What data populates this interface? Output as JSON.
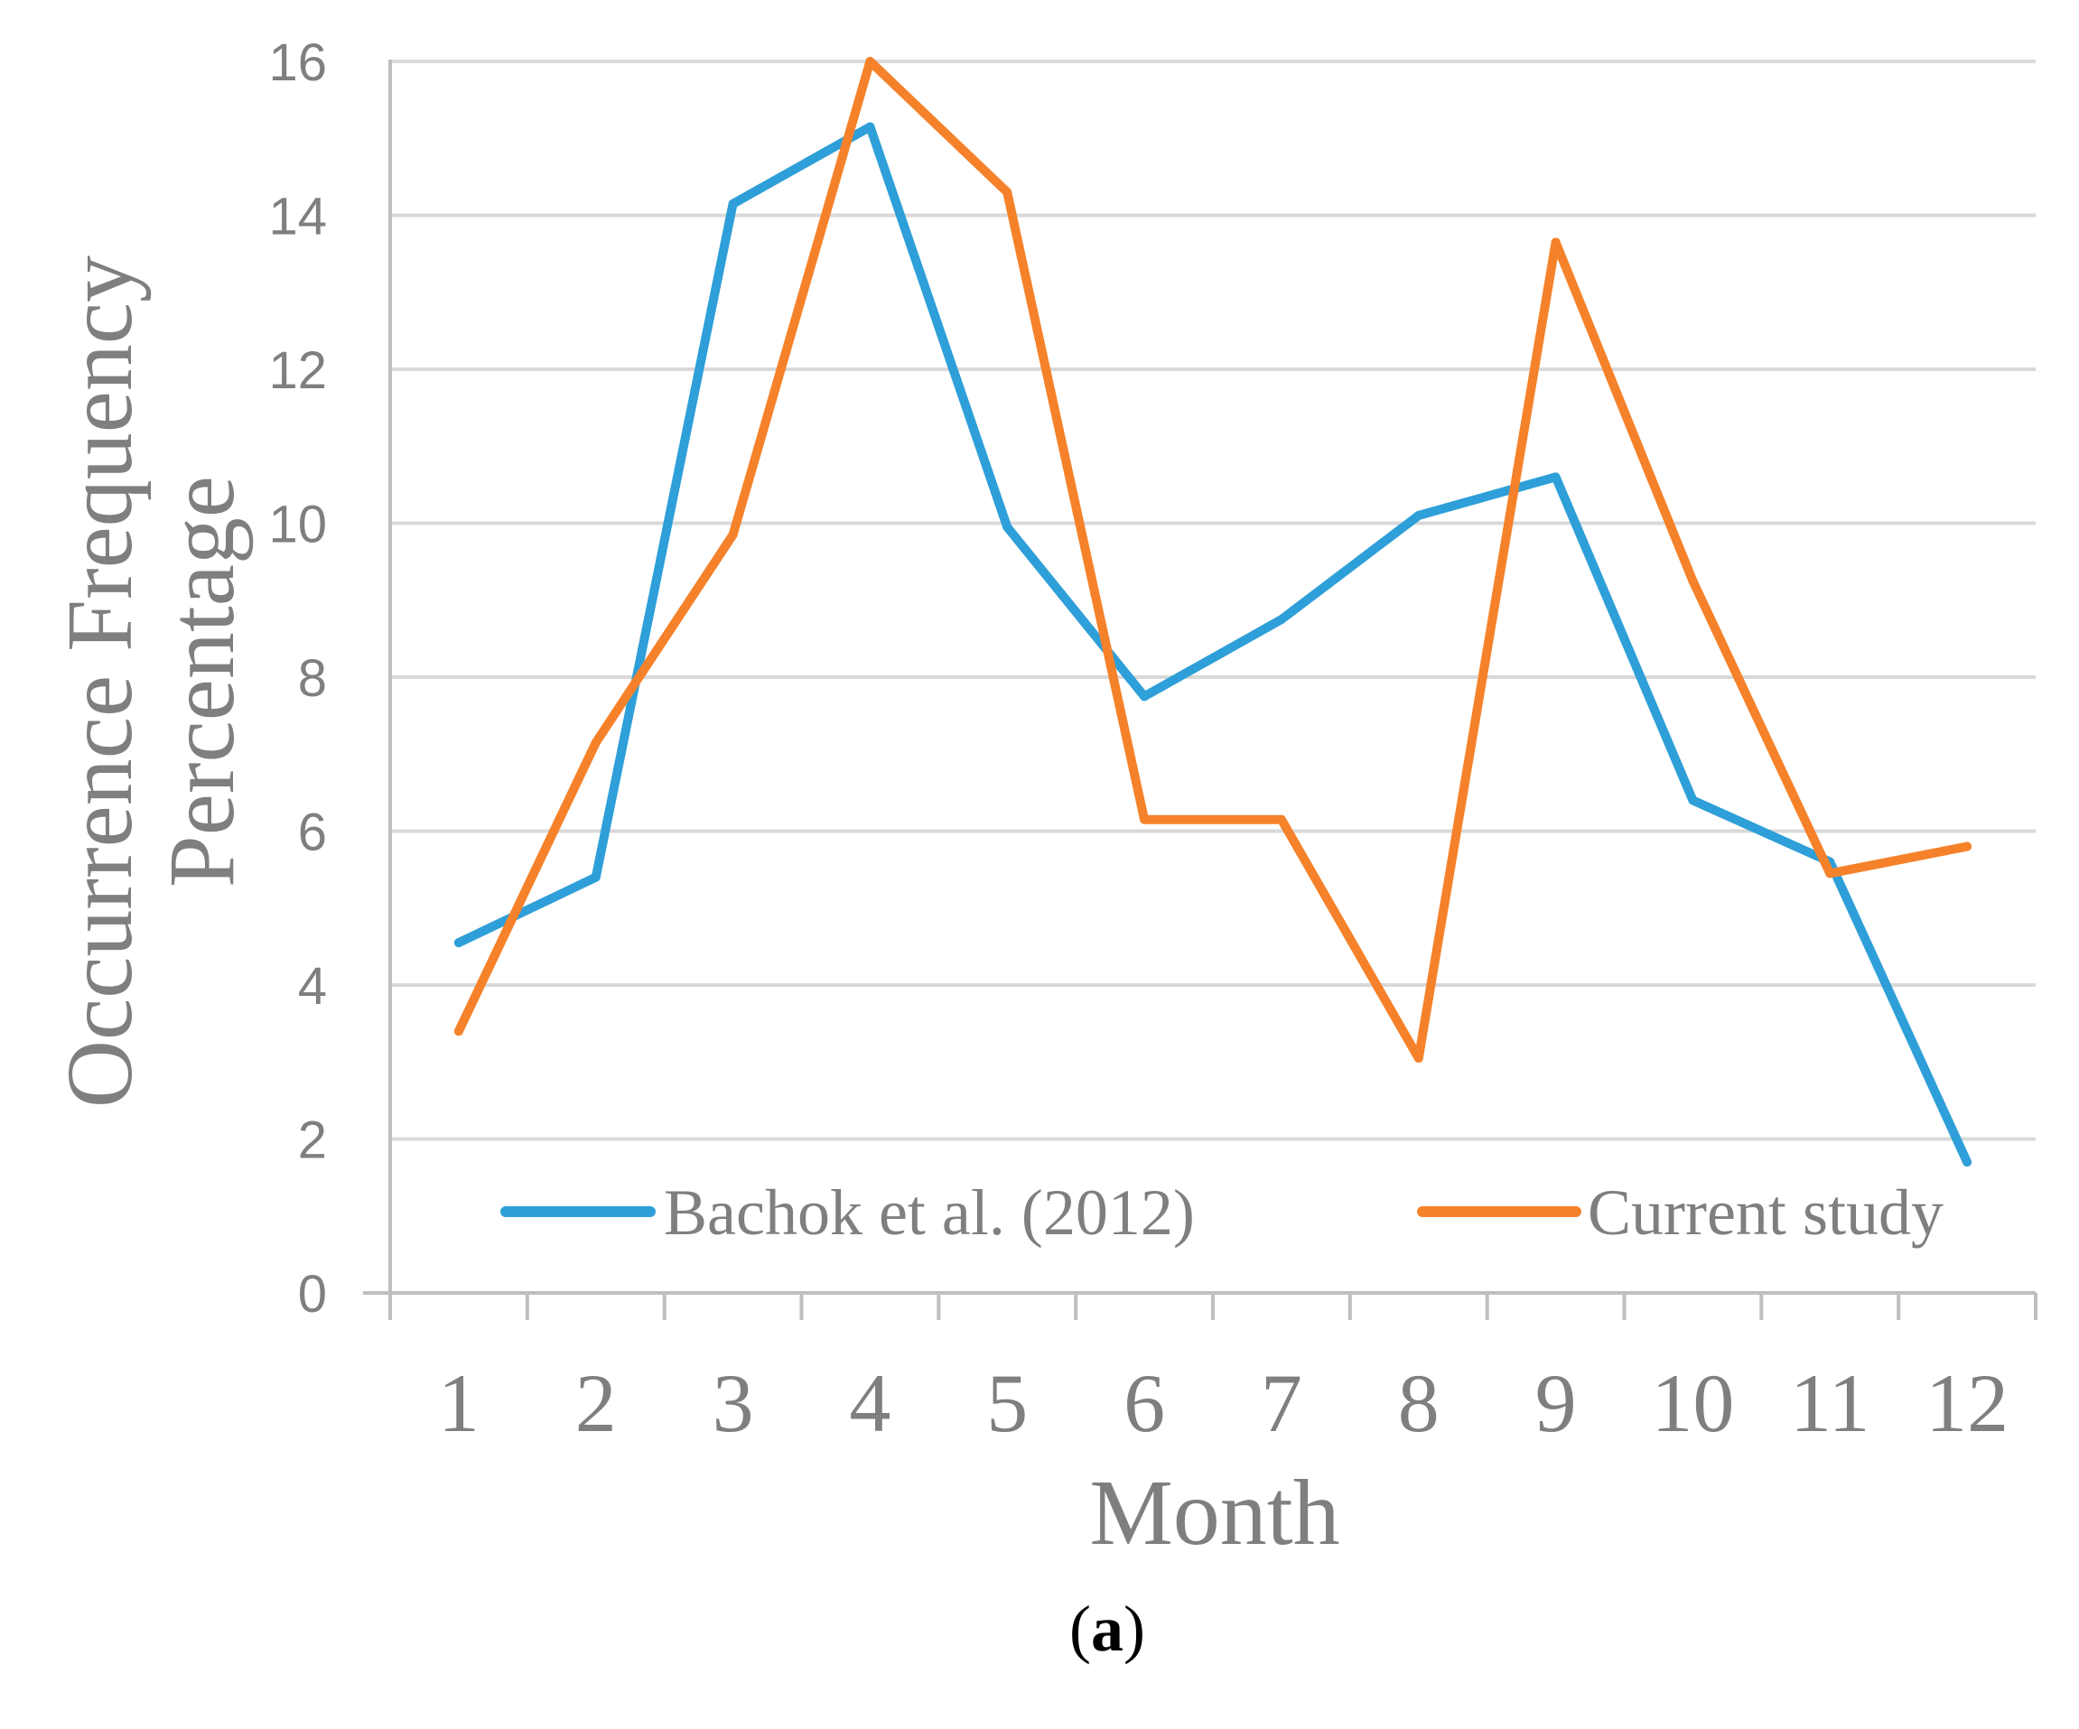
{
  "chart_data": {
    "type": "line",
    "title": "",
    "xlabel": "Month",
    "ylabel_lines": [
      "Occurrence Frequency",
      "Percentage"
    ],
    "categories": [
      "1",
      "2",
      "3",
      "4",
      "5",
      "6",
      "7",
      "8",
      "9",
      "10",
      "11",
      "12"
    ],
    "ylim": [
      0,
      16
    ],
    "yticks": [
      0,
      2,
      4,
      6,
      8,
      10,
      12,
      14,
      16
    ],
    "grid": true,
    "legend_position": "bottom-inside",
    "series": [
      {
        "name": "Bachok et al. (2012)",
        "color": "#2e9fd8",
        "values": [
          4.55,
          5.4,
          14.15,
          15.15,
          9.95,
          7.75,
          8.75,
          10.1,
          10.6,
          6.4,
          5.6,
          1.7
        ]
      },
      {
        "name": "Current study",
        "color": "#f5822a",
        "values": [
          3.4,
          7.15,
          9.85,
          16.0,
          14.3,
          6.15,
          6.15,
          3.05,
          13.65,
          9.25,
          5.45,
          5.8
        ]
      }
    ],
    "caption": {
      "open": "(",
      "label": "a",
      "close": ")"
    }
  }
}
